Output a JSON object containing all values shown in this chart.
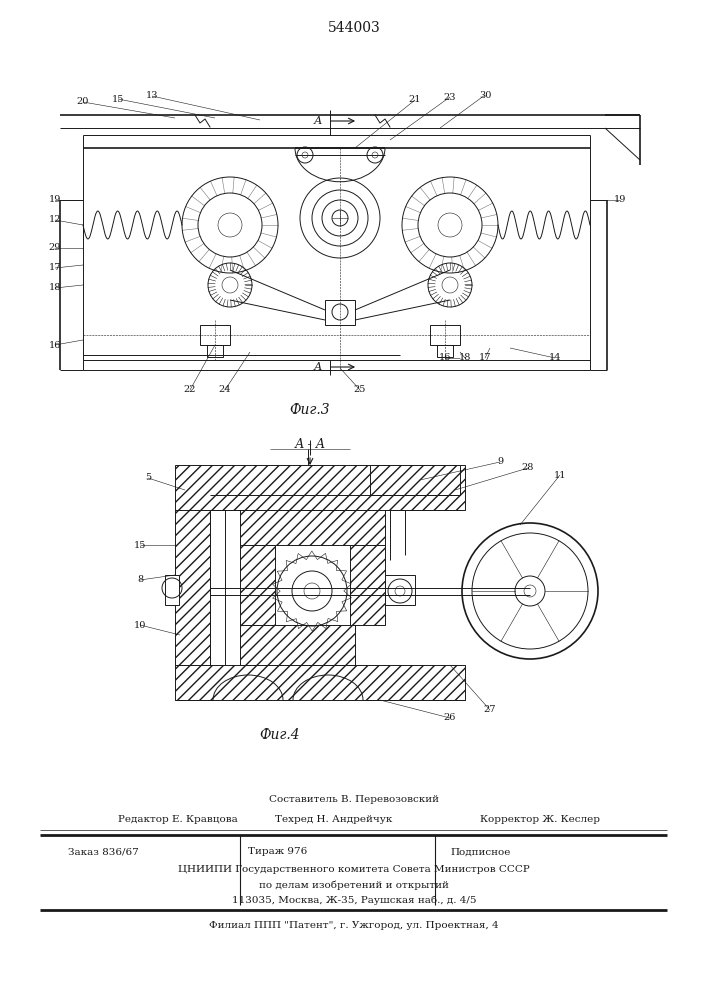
{
  "patent_number": "544003",
  "bg_color": "#ffffff",
  "lc": "#1a1a1a",
  "fig3_title": "Фиг.3",
  "fig4_title": "Фиг.4",
  "section_label": "А - А",
  "footer": {
    "line1": "Составитель В. Перевозовский",
    "line2_left": "Редактор Е. Кравцова",
    "line2_mid": "Техред Н. Андрейчук",
    "line2_right": "Корректор Ж. Кеслер",
    "line3_col1": "Заказ 836/67",
    "line3_col2": "Тираж 976",
    "line3_col3": "Подписное",
    "line4": "ЦНИИПИ Государственного комитета Совета Министров СССР",
    "line5": "по делам изобретений и открытий",
    "line6": "113035, Москва, Ж-35, Раушская наб., д. 4/5",
    "line7": "Филиал ППП \"Патент\", г. Ужгород, ул. Проектная, 4"
  }
}
